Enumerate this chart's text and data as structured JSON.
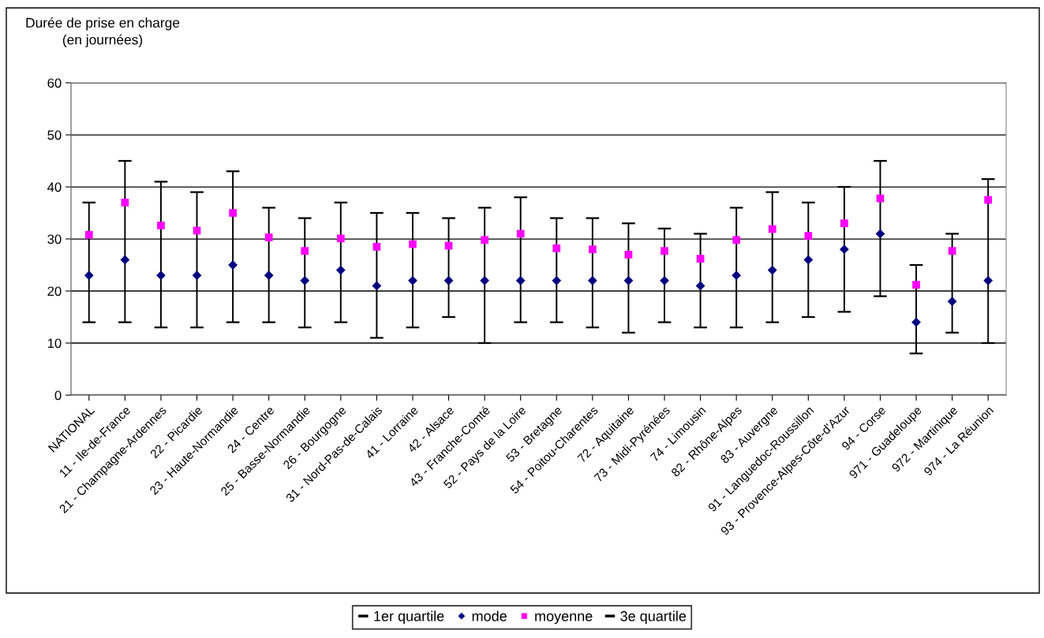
{
  "chart_data": {
    "type": "scatter",
    "ylabel": "Durée de prise en charge\n(en journées)",
    "categories": [
      "NATIONAL",
      "11 - Ile-de-France",
      "21 - Champagne-Ardennes",
      "22 - Picardie",
      "23 - Haute-Normandie",
      "24 - Centre",
      "25 - Basse-Normandie",
      "26 - Bourgogne",
      "31 - Nord-Pas-de-Calais",
      "41 - Lorraine",
      "42 - Alsace",
      "43 - Franche-Comté",
      "52 - Pays de la Loire",
      "53 - Bretagne",
      "54 - Poitou-Charentes",
      "72 - Aquitaine",
      "73 - Midi-Pyrénées",
      "74 - Limousin",
      "82 - Rhône-Alpes",
      "83 - Auvergne",
      "91 - Languedoc-Roussillon",
      "93 - Provence-Alpes-Côte-d'Azur",
      "94 - Corse",
      "971 - Guadeloupe",
      "972 - Martinique",
      "974 - La Réunion"
    ],
    "series": [
      {
        "name": "1er quartile",
        "color": "#000000",
        "marker": "none",
        "values": [
          null,
          null,
          null,
          null,
          null,
          null,
          null,
          null,
          null,
          null,
          null,
          null,
          null,
          null,
          null,
          null,
          null,
          null,
          null,
          null,
          null,
          null,
          null,
          null,
          null,
          null
        ]
      },
      {
        "name": "mode",
        "color": "#000080",
        "marker": "diamond",
        "values": [
          23,
          26,
          23,
          23,
          25,
          23,
          22,
          24,
          21,
          22,
          22,
          22,
          22,
          22,
          22,
          22,
          22,
          21,
          23,
          24,
          26,
          28,
          31,
          14,
          18,
          22
        ],
        "errors": [
          [
            14,
            37
          ],
          [
            14,
            45
          ],
          [
            13,
            41
          ],
          [
            13,
            39
          ],
          [
            14,
            43
          ],
          [
            14,
            36
          ],
          [
            13,
            34
          ],
          [
            14,
            37
          ],
          [
            11,
            35
          ],
          [
            13,
            35
          ],
          [
            15,
            34
          ],
          [
            10,
            36
          ],
          [
            14,
            38
          ],
          [
            14,
            34
          ],
          [
            13,
            34
          ],
          [
            12,
            33
          ],
          [
            14,
            32
          ],
          [
            13,
            31
          ],
          [
            13,
            36
          ],
          [
            14,
            39
          ],
          [
            15,
            37
          ],
          [
            16,
            40
          ],
          [
            19,
            45
          ],
          [
            8,
            25
          ],
          [
            12,
            31
          ],
          [
            10,
            41.5
          ]
        ]
      },
      {
        "name": "moyenne",
        "color": "#ff00ff",
        "marker": "square",
        "values": [
          30.8,
          37,
          32.6,
          31.6,
          35,
          30.3,
          27.7,
          30.1,
          28.5,
          29,
          28.7,
          29.8,
          31,
          28.2,
          28,
          27,
          27.7,
          26.2,
          29.8,
          31.9,
          30.6,
          33,
          37.8,
          21.2,
          27.7,
          37.5
        ]
      },
      {
        "name": "3e quartile",
        "color": "#000000",
        "marker": "none",
        "values": [
          null,
          null,
          null,
          null,
          null,
          null,
          null,
          null,
          null,
          null,
          null,
          null,
          null,
          null,
          null,
          null,
          null,
          null,
          null,
          null,
          null,
          null,
          null,
          null,
          null,
          null
        ]
      }
    ],
    "ylim": [
      0,
      60
    ],
    "yticks": [
      0,
      10,
      20,
      30,
      40,
      50,
      60
    ],
    "grid": "y",
    "legend": "bottom"
  }
}
